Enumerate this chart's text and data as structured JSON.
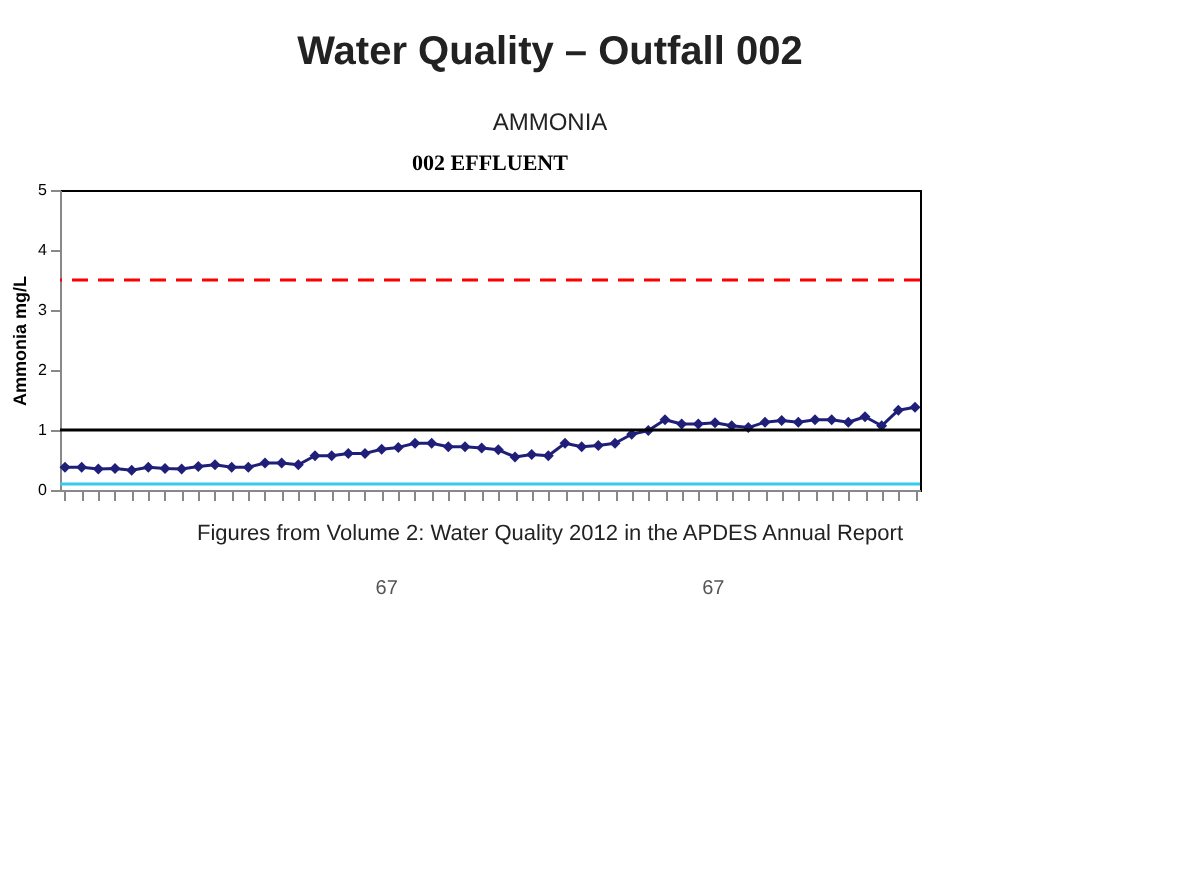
{
  "chart_data": {
    "type": "line",
    "title": "Water Quality – Outfall 002",
    "subtitle": "AMMONIA",
    "ylabel": "Ammonia mg/L",
    "annotations": [
      "002 EFFLUENT",
      "Figures from Volume 2: Water Quality 2012 in the APDES Annual Report",
      "67",
      "67"
    ],
    "categories": [
      null,
      null,
      null,
      null,
      null,
      null,
      null,
      null,
      null,
      null,
      null,
      null,
      null,
      null,
      null,
      null,
      null,
      null,
      null,
      null,
      null,
      null,
      null,
      null,
      null,
      null,
      null,
      null,
      null,
      null,
      null,
      null,
      null,
      null,
      null,
      null,
      null,
      null,
      null,
      null,
      null,
      null,
      null,
      null,
      null,
      null,
      null,
      null,
      null,
      null,
      null,
      null
    ],
    "series": [
      {
        "color": "#1f1f7a",
        "values": [
          0.38,
          0.38,
          0.35,
          0.36,
          0.33,
          0.38,
          0.36,
          0.35,
          0.39,
          0.42,
          0.38,
          0.38,
          0.45,
          0.45,
          0.42,
          0.57,
          0.57,
          0.61,
          0.61,
          0.68,
          0.71,
          0.78,
          0.78,
          0.72,
          0.72,
          0.7,
          0.67,
          0.55,
          0.59,
          0.57,
          0.78,
          0.72,
          0.74,
          0.78,
          0.93,
          0.99,
          1.17,
          1.1,
          1.1,
          1.12,
          1.07,
          1.04,
          1.13,
          1.16,
          1.13,
          1.17,
          1.17,
          1.13,
          1.22,
          1.07,
          1.33,
          1.38
        ]
      }
    ],
    "ref_lines": [
      {
        "axis": "y",
        "value": 1,
        "color": "#000000",
        "line_style": "solid"
      },
      {
        "axis": "y",
        "value": 0.1,
        "color": "#33ccee",
        "line_style": "solid"
      },
      {
        "axis": "y",
        "value": 3.5,
        "color": "#ff0000",
        "line_style": "dashed"
      }
    ],
    "ylim": [
      0,
      5
    ],
    "yticks": [
      0,
      1,
      2,
      3,
      4,
      5
    ],
    "grid": false,
    "marker": "diamond",
    "line_style": "solid",
    "tick_labels": "y"
  }
}
